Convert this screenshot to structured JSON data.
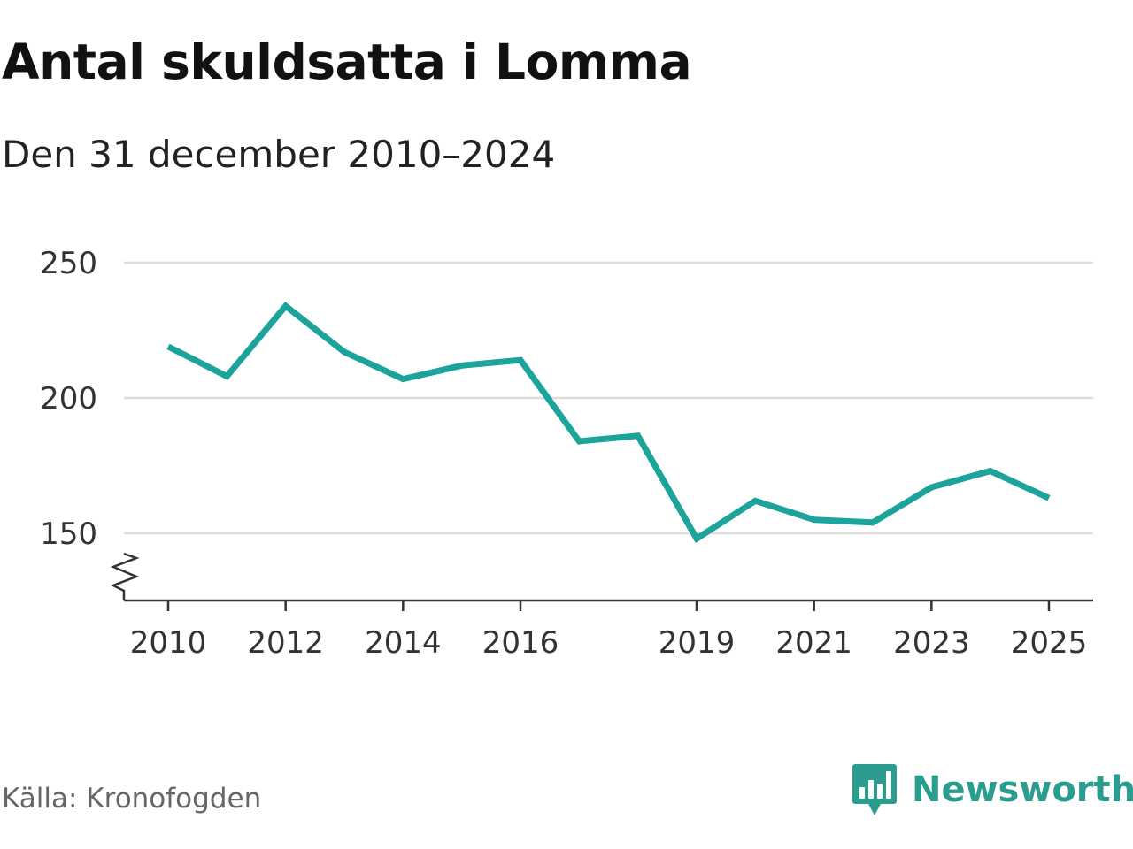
{
  "header": {
    "title": "Antal skuldsatta i Lomma",
    "subtitle": "Den 31 december 2010–2024"
  },
  "footer": {
    "source": "Källa: Kronofogden",
    "brand": "Newsworthy"
  },
  "colors": {
    "line": "#1ba39c",
    "brand": "#2a9d8f",
    "grid": "#dddddd",
    "axis": "#333333"
  },
  "chart_data": {
    "type": "line",
    "title": "Antal skuldsatta i Lomma",
    "subtitle": "Den 31 december 2010–2024",
    "xlabel": "",
    "ylabel": "",
    "x": [
      2010,
      2011,
      2012,
      2013,
      2014,
      2015,
      2016,
      2017,
      2018,
      2019,
      2020,
      2021,
      2022,
      2023,
      2024,
      2025
    ],
    "values": [
      219,
      208,
      234,
      217,
      207,
      212,
      214,
      184,
      186,
      148,
      162,
      155,
      154,
      167,
      173,
      163
    ],
    "xticks": [
      "2010",
      "2012",
      "2014",
      "2016",
      "2019",
      "2021",
      "2023",
      "2025"
    ],
    "yticks": [
      "150",
      "200",
      "250"
    ],
    "ylim": [
      125,
      250
    ],
    "grid": true,
    "axis_break": true
  }
}
